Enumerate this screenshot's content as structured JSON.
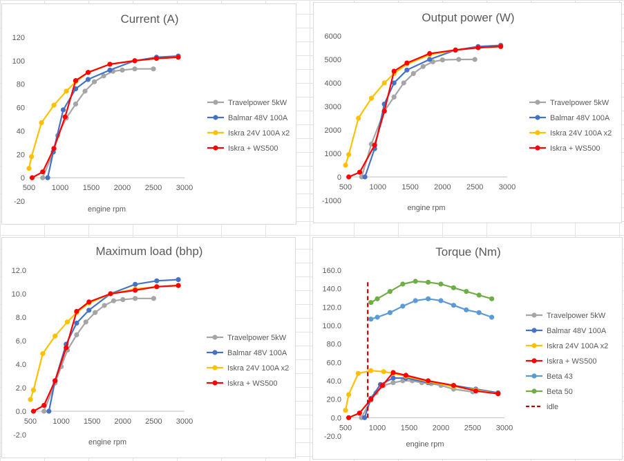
{
  "chart_data": [
    {
      "type": "line",
      "title": "Current (A)",
      "xlabel": "engine rpm",
      "ylabel": "",
      "xlim": [
        500,
        3000
      ],
      "ylim": [
        -20,
        120
      ],
      "xticks": [
        "500",
        "1000",
        "1500",
        "2000",
        "2500",
        "3000"
      ],
      "yticks": [
        "-20",
        "0",
        "20",
        "40",
        "60",
        "80",
        "100",
        "120"
      ],
      "grid": false,
      "legend": "right",
      "series": [
        {
          "name": "Travelpower 5kW",
          "color": "#a5a5a5",
          "points": [
            [
              720,
              0
            ],
            [
              890,
              22
            ],
            [
              960,
              36
            ],
            [
              1100,
              51
            ],
            [
              1250,
              63
            ],
            [
              1400,
              74
            ],
            [
              1550,
              82
            ],
            [
              1700,
              87
            ],
            [
              1850,
              91
            ],
            [
              2000,
              92
            ],
            [
              2200,
              93
            ],
            [
              2500,
              93
            ]
          ]
        },
        {
          "name": "Balmar 48V 100A",
          "color": "#4472c4",
          "points": [
            [
              800,
              0
            ],
            [
              890,
              22
            ],
            [
              1050,
              58
            ],
            [
              1250,
              76
            ],
            [
              1450,
              84
            ],
            [
              1800,
              92
            ],
            [
              2200,
              100
            ],
            [
              2550,
              103
            ],
            [
              2900,
              104
            ]
          ]
        },
        {
          "name": "Iskra 24V 100A x2",
          "color": "#ffc000",
          "points": [
            [
              500,
              8
            ],
            [
              540,
              18
            ],
            [
              700,
              47
            ],
            [
              900,
              62
            ],
            [
              1100,
              74
            ],
            [
              1250,
              82
            ],
            [
              1450,
              90
            ],
            [
              1800,
              97
            ],
            [
              2200,
              100
            ],
            [
              2550,
              102
            ],
            [
              2900,
              103
            ]
          ]
        },
        {
          "name": "Iskra + WS500",
          "color": "#ff0000",
          "points": [
            [
              550,
              0
            ],
            [
              720,
              5
            ],
            [
              900,
              25
            ],
            [
              1080,
              52
            ],
            [
              1250,
              83
            ],
            [
              1450,
              90
            ],
            [
              1800,
              97
            ],
            [
              2200,
              100
            ],
            [
              2550,
              102
            ],
            [
              2900,
              103
            ]
          ]
        }
      ]
    },
    {
      "type": "line",
      "title": "Output power (W)",
      "xlabel": "engine rpm",
      "ylabel": "",
      "xlim": [
        500,
        3000
      ],
      "ylim": [
        -1000,
        6000
      ],
      "xticks": [
        "500",
        "1000",
        "1500",
        "2000",
        "2500",
        "3000"
      ],
      "yticks": [
        "-1000",
        "0",
        "1000",
        "2000",
        "3000",
        "4000",
        "5000",
        "6000"
      ],
      "grid": false,
      "legend": "right",
      "series": [
        {
          "name": "Travelpower 5kW",
          "color": "#a5a5a5",
          "points": [
            [
              750,
              0
            ],
            [
              900,
              1400
            ],
            [
              1100,
              2800
            ],
            [
              1250,
              3400
            ],
            [
              1400,
              4000
            ],
            [
              1550,
              4400
            ],
            [
              1700,
              4700
            ],
            [
              1850,
              4900
            ],
            [
              2000,
              4980
            ],
            [
              2250,
              5000
            ],
            [
              2500,
              5000
            ]
          ]
        },
        {
          "name": "Balmar 48V 100A",
          "color": "#4472c4",
          "points": [
            [
              800,
              0
            ],
            [
              950,
              1200
            ],
            [
              1100,
              3100
            ],
            [
              1250,
              4000
            ],
            [
              1450,
              4550
            ],
            [
              1800,
              5000
            ],
            [
              2200,
              5400
            ],
            [
              2550,
              5550
            ],
            [
              2900,
              5600
            ]
          ]
        },
        {
          "name": "Iskra 24V 100A x2",
          "color": "#ffc000",
          "points": [
            [
              500,
              500
            ],
            [
              550,
              950
            ],
            [
              700,
              2500
            ],
            [
              900,
              3350
            ],
            [
              1100,
              4000
            ],
            [
              1250,
              4400
            ],
            [
              1450,
              4800
            ],
            [
              1800,
              5200
            ],
            [
              2200,
              5400
            ],
            [
              2550,
              5500
            ],
            [
              2900,
              5550
            ]
          ]
        },
        {
          "name": "Iskra + WS500",
          "color": "#ff0000",
          "points": [
            [
              550,
              0
            ],
            [
              720,
              200
            ],
            [
              950,
              1350
            ],
            [
              1100,
              2800
            ],
            [
              1250,
              4500
            ],
            [
              1450,
              4850
            ],
            [
              1800,
              5250
            ],
            [
              2200,
              5400
            ],
            [
              2550,
              5500
            ],
            [
              2900,
              5550
            ]
          ]
        }
      ]
    },
    {
      "type": "line",
      "title": "Maximum load (bhp)",
      "xlabel": "engine rpm",
      "ylabel": "",
      "xlim": [
        500,
        3000
      ],
      "ylim": [
        -2,
        12
      ],
      "xticks": [
        "500",
        "1000",
        "1500",
        "2000",
        "2500",
        "3000"
      ],
      "yticks": [
        "-2.0",
        "0.0",
        "2.0",
        "4.0",
        "6.0",
        "8.0",
        "10.0",
        "12.0"
      ],
      "grid": false,
      "legend": "right",
      "series": [
        {
          "name": "Travelpower 5kW",
          "color": "#a5a5a5",
          "points": [
            [
              720,
              0
            ],
            [
              900,
              2.4
            ],
            [
              1000,
              3.8
            ],
            [
              1100,
              5.2
            ],
            [
              1250,
              6.5
            ],
            [
              1400,
              7.6
            ],
            [
              1550,
              8.4
            ],
            [
              1700,
              9.0
            ],
            [
              1850,
              9.4
            ],
            [
              2000,
              9.5
            ],
            [
              2200,
              9.6
            ],
            [
              2500,
              9.6
            ]
          ]
        },
        {
          "name": "Balmar 48V 100A",
          "color": "#4472c4",
          "points": [
            [
              800,
              0
            ],
            [
              900,
              2.6
            ],
            [
              1080,
              5.7
            ],
            [
              1250,
              7.5
            ],
            [
              1450,
              8.6
            ],
            [
              1800,
              10.0
            ],
            [
              2200,
              10.8
            ],
            [
              2550,
              11.1
            ],
            [
              2900,
              11.2
            ]
          ]
        },
        {
          "name": "Iskra 24V 100A x2",
          "color": "#ffc000",
          "points": [
            [
              500,
              1.0
            ],
            [
              550,
              1.8
            ],
            [
              700,
              4.9
            ],
            [
              900,
              6.4
            ],
            [
              1100,
              7.6
            ],
            [
              1250,
              8.4
            ],
            [
              1450,
              9.2
            ],
            [
              1800,
              10.0
            ],
            [
              2200,
              10.4
            ],
            [
              2550,
              10.6
            ],
            [
              2900,
              10.7
            ]
          ]
        },
        {
          "name": "Iskra + WS500",
          "color": "#ff0000",
          "points": [
            [
              550,
              0
            ],
            [
              720,
              0.5
            ],
            [
              900,
              2.6
            ],
            [
              1080,
              5.4
            ],
            [
              1250,
              8.5
            ],
            [
              1450,
              9.3
            ],
            [
              1800,
              10.0
            ],
            [
              2200,
              10.3
            ],
            [
              2550,
              10.6
            ],
            [
              2900,
              10.7
            ]
          ]
        }
      ]
    },
    {
      "type": "line",
      "title": "Torque (Nm)",
      "xlabel": "engine rpm",
      "ylabel": "",
      "xlim": [
        500,
        3000
      ],
      "ylim": [
        -20,
        160
      ],
      "xticks": [
        "500",
        "1000",
        "1500",
        "2000",
        "2500",
        "3000"
      ],
      "yticks": [
        "-20.0",
        "0.0",
        "20.0",
        "40.0",
        "60.0",
        "80.0",
        "100.0",
        "120.0",
        "140.0",
        "160.0"
      ],
      "grid": false,
      "legend": "right",
      "idle_rpm": 850,
      "series": [
        {
          "name": "Travelpower 5kW",
          "color": "#a5a5a5",
          "points": [
            [
              750,
              0
            ],
            [
              900,
              19
            ],
            [
              980,
              27
            ],
            [
              1100,
              35
            ],
            [
              1250,
              38
            ],
            [
              1400,
              40
            ],
            [
              1550,
              40
            ],
            [
              1700,
              38
            ],
            [
              1850,
              37
            ],
            [
              2000,
              35
            ],
            [
              2200,
              31
            ],
            [
              2500,
              28
            ]
          ]
        },
        {
          "name": "Balmar 48V 100A",
          "color": "#4472c4",
          "points": [
            [
              800,
              0
            ],
            [
              900,
              21
            ],
            [
              1050,
              36
            ],
            [
              1250,
              43
            ],
            [
              1450,
              43
            ],
            [
              1800,
              38
            ],
            [
              2200,
              35
            ],
            [
              2550,
              31
            ],
            [
              2900,
              27
            ]
          ]
        },
        {
          "name": "Iskra 24V 100A x2",
          "color": "#ffc000",
          "points": [
            [
              500,
              8
            ],
            [
              550,
              25
            ],
            [
              700,
              48
            ],
            [
              900,
              51
            ],
            [
              1100,
              50
            ],
            [
              1250,
              48
            ],
            [
              1450,
              45
            ],
            [
              1800,
              39
            ],
            [
              2200,
              34
            ],
            [
              2550,
              30
            ],
            [
              2900,
              26
            ]
          ]
        },
        {
          "name": "Iskra + WS500",
          "color": "#ff0000",
          "points": [
            [
              550,
              0
            ],
            [
              720,
              5
            ],
            [
              900,
              20
            ],
            [
              1080,
              35
            ],
            [
              1250,
              49
            ],
            [
              1450,
              46
            ],
            [
              1800,
              40
            ],
            [
              2200,
              35
            ],
            [
              2550,
              29
            ],
            [
              2900,
              26
            ]
          ]
        },
        {
          "name": "Beta 43",
          "color": "#5b9bd5",
          "points": [
            [
              900,
              107
            ],
            [
              1000,
              109
            ],
            [
              1200,
              114
            ],
            [
              1400,
              121
            ],
            [
              1600,
              127
            ],
            [
              1800,
              129
            ],
            [
              2000,
              127
            ],
            [
              2200,
              122
            ],
            [
              2400,
              117
            ],
            [
              2600,
              114
            ],
            [
              2800,
              109
            ]
          ]
        },
        {
          "name": "Beta 50",
          "color": "#70ad47",
          "points": [
            [
              900,
              125
            ],
            [
              1000,
              129
            ],
            [
              1200,
              137
            ],
            [
              1400,
              145
            ],
            [
              1600,
              148
            ],
            [
              1800,
              147
            ],
            [
              2000,
              145
            ],
            [
              2200,
              141
            ],
            [
              2400,
              137
            ],
            [
              2600,
              133
            ],
            [
              2800,
              129
            ]
          ]
        },
        {
          "name": "idle",
          "color": "#c00000",
          "dashed": true
        }
      ]
    }
  ]
}
